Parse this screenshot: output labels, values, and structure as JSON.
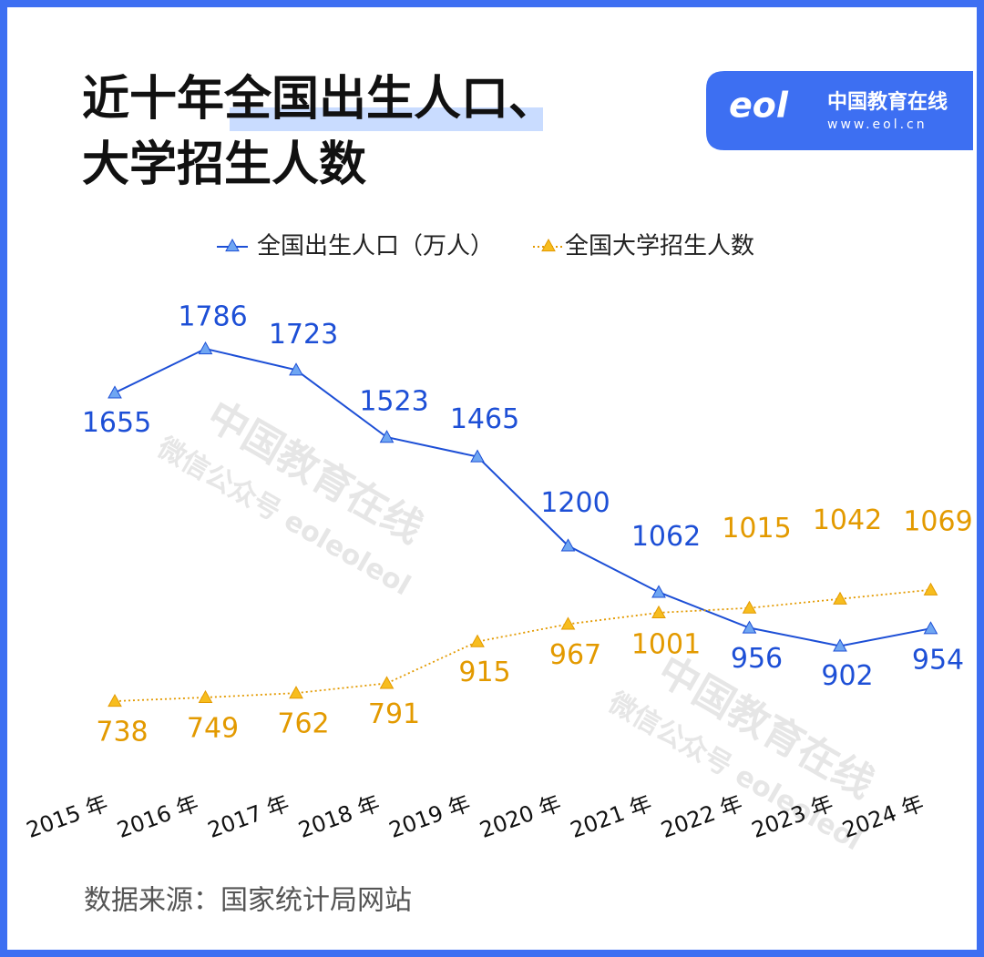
{
  "chart_data": {
    "type": "line",
    "title": [
      "近十年全国出生人口、",
      "大学招生人数"
    ],
    "categories": [
      "2015 年",
      "2016 年",
      "2017 年",
      "2018 年",
      "2019 年",
      "2020 年",
      "2021 年",
      "2022 年",
      "2023 年",
      "2024 年"
    ],
    "series": [
      {
        "name": "全国出生人口（万人）",
        "color": "#1d4fd6",
        "values": [
          1655,
          1786,
          1723,
          1523,
          1465,
          1200,
          1062,
          956,
          902,
          954
        ]
      },
      {
        "name": "全国大学招生人数",
        "color": "#e39a00",
        "values": [
          738,
          749,
          762,
          791,
          915,
          967,
          1001,
          1015,
          1042,
          1069
        ]
      }
    ],
    "source": "数据来源：国家统计局网站"
  },
  "logo": {
    "name": "中国教育在线",
    "url": "www.eol.cn"
  },
  "watermark": {
    "brand": "中国教育在线",
    "account": "微信公众号 eoleoleol"
  }
}
